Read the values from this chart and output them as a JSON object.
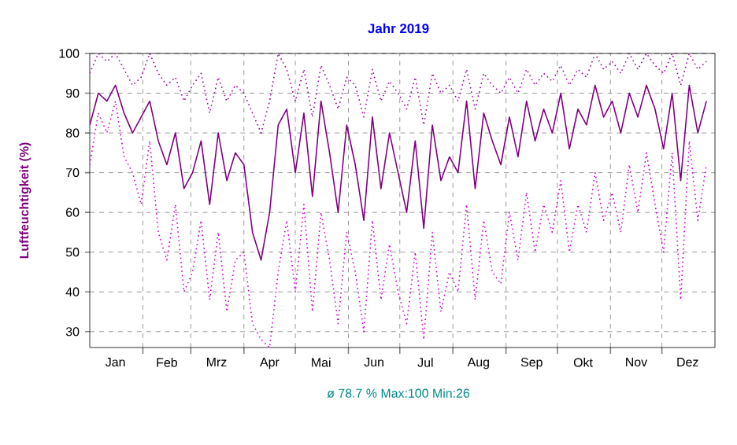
{
  "chart_data": {
    "type": "line",
    "title": "Jahr 2019",
    "ylabel": "Luftfeuchtigkeit (%)",
    "annotations": [
      "ø 78.7 % Max:100 Min:26"
    ],
    "x": [
      "2019-01-01",
      "2019-01-06",
      "2019-01-11",
      "2019-01-16",
      "2019-01-21",
      "2019-01-26",
      "2019-01-31",
      "2019-02-05",
      "2019-02-10",
      "2019-02-15",
      "2019-02-20",
      "2019-02-25",
      "2019-03-02",
      "2019-03-07",
      "2019-03-12",
      "2019-03-17",
      "2019-03-22",
      "2019-03-27",
      "2019-04-01",
      "2019-04-06",
      "2019-04-11",
      "2019-04-16",
      "2019-04-21",
      "2019-04-26",
      "2019-05-01",
      "2019-05-06",
      "2019-05-11",
      "2019-05-16",
      "2019-05-21",
      "2019-05-26",
      "2019-05-31",
      "2019-06-05",
      "2019-06-10",
      "2019-06-15",
      "2019-06-20",
      "2019-06-25",
      "2019-06-30",
      "2019-07-05",
      "2019-07-10",
      "2019-07-15",
      "2019-07-20",
      "2019-07-25",
      "2019-07-30",
      "2019-08-04",
      "2019-08-09",
      "2019-08-14",
      "2019-08-19",
      "2019-08-24",
      "2019-08-29",
      "2019-09-03",
      "2019-09-08",
      "2019-09-13",
      "2019-09-18",
      "2019-09-23",
      "2019-09-28",
      "2019-10-03",
      "2019-10-08",
      "2019-10-13",
      "2019-10-18",
      "2019-10-23",
      "2019-10-28",
      "2019-11-02",
      "2019-11-07",
      "2019-11-12",
      "2019-11-17",
      "2019-11-22",
      "2019-11-27",
      "2019-12-02",
      "2019-12-07",
      "2019-12-12",
      "2019-12-17",
      "2019-12-22",
      "2019-12-27"
    ],
    "series": [
      {
        "color": "#990099",
        "line_style": "dotted",
        "values": [
          95,
          100,
          98,
          100,
          96,
          92,
          94,
          100,
          95,
          92,
          94,
          88,
          92,
          95,
          85,
          94,
          88,
          92,
          90,
          85,
          80,
          88,
          100,
          96,
          88,
          96,
          84,
          97,
          92,
          86,
          94,
          92,
          84,
          96,
          88,
          93,
          90,
          86,
          94,
          82,
          95,
          90,
          92,
          88,
          96,
          86,
          95,
          92,
          90,
          94,
          90,
          96,
          92,
          95,
          93,
          97,
          92,
          96,
          94,
          100,
          96,
          98,
          95,
          100,
          96,
          100,
          97,
          95,
          100,
          92,
          100,
          96,
          98
        ]
      },
      {
        "color": "#cc00cc",
        "line_style": "dotted",
        "values": [
          72,
          85,
          80,
          88,
          74,
          70,
          62,
          78,
          55,
          48,
          62,
          40,
          45,
          58,
          38,
          55,
          35,
          48,
          50,
          32,
          28,
          26,
          45,
          58,
          40,
          62,
          35,
          60,
          48,
          32,
          55,
          45,
          30,
          58,
          38,
          52,
          40,
          32,
          50,
          28,
          55,
          35,
          45,
          40,
          62,
          38,
          58,
          45,
          42,
          60,
          48,
          65,
          50,
          62,
          55,
          68,
          50,
          62,
          55,
          70,
          58,
          65,
          55,
          72,
          60,
          75,
          62,
          50,
          75,
          38,
          78,
          58,
          72
        ]
      },
      {
        "color": "#800080",
        "line_style": "solid",
        "values": [
          82,
          90,
          88,
          92,
          85,
          80,
          84,
          88,
          78,
          72,
          80,
          66,
          70,
          78,
          62,
          80,
          68,
          75,
          72,
          55,
          48,
          60,
          82,
          86,
          70,
          85,
          64,
          88,
          75,
          60,
          82,
          72,
          58,
          84,
          66,
          80,
          70,
          60,
          78,
          56,
          82,
          68,
          74,
          70,
          88,
          66,
          85,
          78,
          72,
          84,
          74,
          88,
          78,
          86,
          80,
          90,
          76,
          86,
          82,
          92,
          84,
          88,
          80,
          90,
          84,
          92,
          86,
          76,
          90,
          68,
          92,
          80,
          88
        ]
      }
    ],
    "xlim": [
      "2019-01-01",
      "2020-01-01"
    ],
    "xticks": [
      {
        "value": "2019-01-16",
        "label": "Jan"
      },
      {
        "value": "2019-02-01",
        "label": null
      },
      {
        "value": "2019-02-15",
        "label": "Feb"
      },
      {
        "value": "2019-03-01",
        "label": null
      },
      {
        "value": "2019-03-16",
        "label": "Mrz"
      },
      {
        "value": "2019-04-01",
        "label": null
      },
      {
        "value": "2019-04-16",
        "label": "Apr"
      },
      {
        "value": "2019-05-01",
        "label": null
      },
      {
        "value": "2019-05-16",
        "label": "Mai"
      },
      {
        "value": "2019-06-01",
        "label": null
      },
      {
        "value": "2019-06-16",
        "label": "Jun"
      },
      {
        "value": "2019-07-01",
        "label": null
      },
      {
        "value": "2019-07-16",
        "label": "Jul"
      },
      {
        "value": "2019-08-01",
        "label": null
      },
      {
        "value": "2019-08-16",
        "label": "Aug"
      },
      {
        "value": "2019-09-01",
        "label": null
      },
      {
        "value": "2019-09-16",
        "label": "Sep"
      },
      {
        "value": "2019-10-01",
        "label": null
      },
      {
        "value": "2019-10-16",
        "label": "Okt"
      },
      {
        "value": "2019-11-01",
        "label": null
      },
      {
        "value": "2019-11-16",
        "label": "Nov"
      },
      {
        "value": "2019-12-01",
        "label": null
      },
      {
        "value": "2019-12-16",
        "label": "Dez"
      }
    ],
    "ylim": [
      26,
      100
    ],
    "yticks": [
      30,
      40,
      50,
      60,
      70,
      80,
      90,
      100
    ],
    "grid": true,
    "marker": "none"
  }
}
